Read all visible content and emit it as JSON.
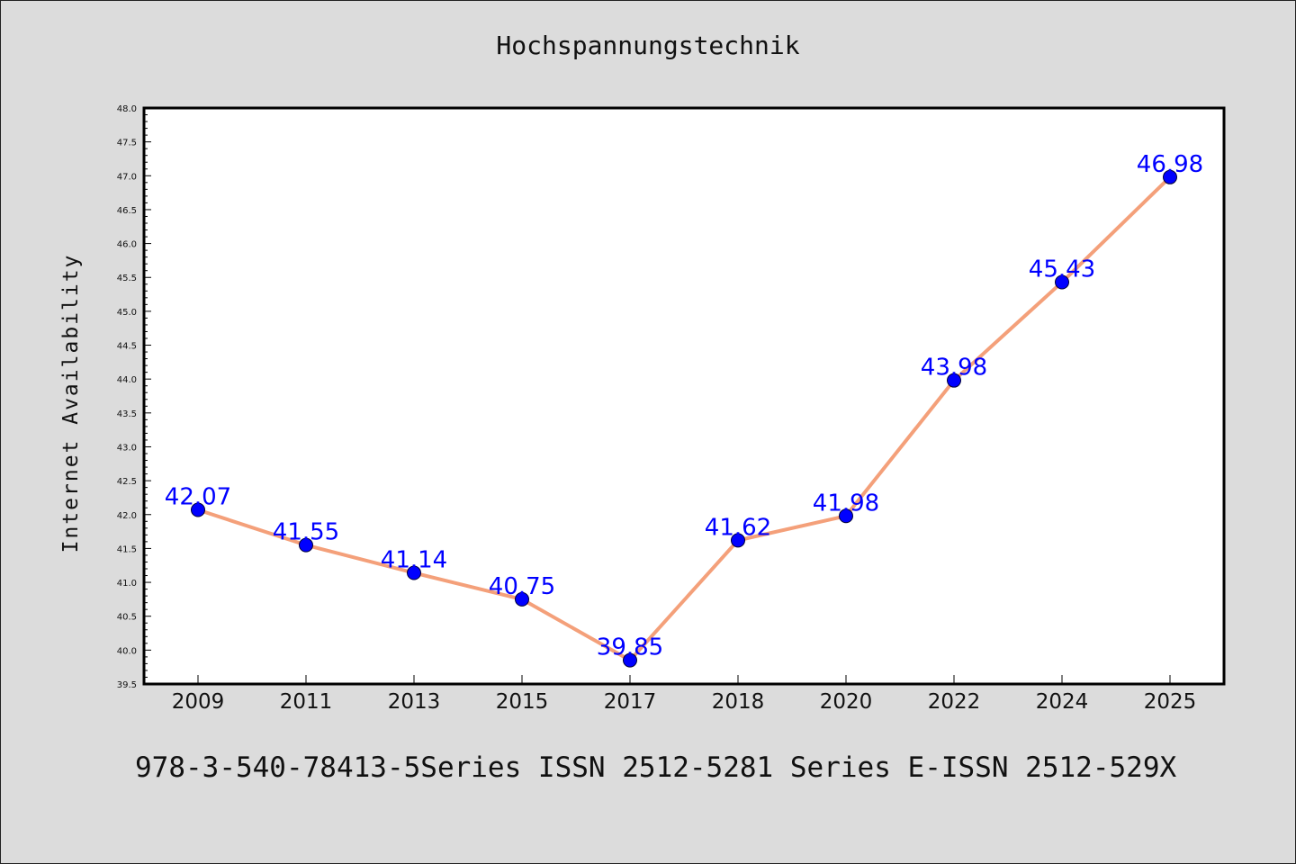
{
  "chart_data": {
    "type": "line",
    "title": "Hochspannungstechnik",
    "xlabel": "",
    "ylabel": "Internet Availability",
    "categories": [
      "2009",
      "2011",
      "2013",
      "2015",
      "2017",
      "2018",
      "2020",
      "2022",
      "2024",
      "2025"
    ],
    "series": [
      {
        "values": [
          42.07,
          41.55,
          41.14,
          40.75,
          39.85,
          41.62,
          41.98,
          43.98,
          45.43,
          46.98
        ],
        "data_labels": [
          "42.07",
          "41.55",
          "41.14",
          "40.75",
          "39.85",
          "41.62",
          "41.98",
          "43.98",
          "45.43",
          "46.98"
        ],
        "line_color": "#f4a07a",
        "marker_color": "#0000ff",
        "label_color": "#0000ff"
      }
    ],
    "ylim": [
      39.5,
      48.0
    ],
    "yticks": [
      "39.5",
      "40.0",
      "40.5",
      "41.0",
      "41.5",
      "42.0",
      "42.5",
      "43.0",
      "43.5",
      "44.0",
      "44.5",
      "45.0",
      "45.5",
      "46.0",
      "46.5",
      "47.0",
      "47.5",
      "48.0"
    ],
    "grid": false,
    "legend": "none"
  },
  "footer": "978-3-540-78413-5Series ISSN 2512-5281 Series E-ISSN 2512-529X",
  "colors": {
    "background": "#dcdcdc",
    "plot_background": "#ffffff"
  }
}
